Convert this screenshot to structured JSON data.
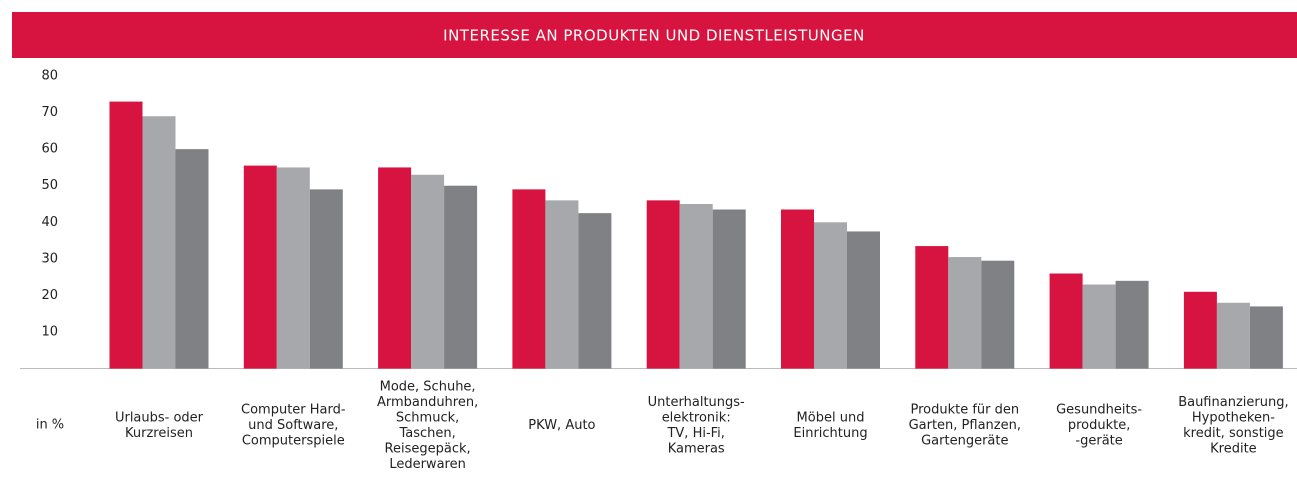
{
  "chart_data": {
    "type": "bar",
    "title": "INTERESSE AN PRODUKTEN UND DIENSTLEISTUNGEN",
    "y_label": "in %",
    "categories": [
      [
        "Urlaubs- oder",
        "Kurzreisen"
      ],
      [
        "Computer Hard-",
        "und Software,",
        "Computerspiele"
      ],
      [
        "Mode, Schuhe,",
        "Armbanduhren,",
        "Schmuck,",
        "Taschen,",
        "Reisegepäck,",
        "Lederwaren"
      ],
      [
        "PKW, Auto"
      ],
      [
        "Unterhaltungs-",
        "elektronik:",
        "TV, Hi-Fi,",
        "Kameras"
      ],
      [
        "Möbel und",
        "Einrichtung"
      ],
      [
        "Produkte für den",
        "Garten, Pflanzen,",
        "Gartengeräte"
      ],
      [
        "Gesundheits-",
        "produkte,",
        "-geräte"
      ],
      [
        "Baufinanzierung,",
        "Hypotheken-",
        "kredit, sonstige",
        "Kredite"
      ]
    ],
    "series": [
      {
        "color": "#d7143f",
        "values": [
          73,
          55.5,
          55,
          49,
          46,
          43.5,
          33.5,
          26,
          21
        ]
      },
      {
        "color": "#a7a8ab",
        "values": [
          69,
          55,
          53,
          46,
          45,
          40,
          30.5,
          23,
          18
        ]
      },
      {
        "color": "#808184",
        "values": [
          60,
          49,
          50,
          42.5,
          43.5,
          37.5,
          29.5,
          24,
          17
        ]
      }
    ],
    "ylim": [
      0,
      80
    ],
    "yticks": [
      10,
      20,
      30,
      40,
      50,
      60,
      70,
      80
    ],
    "grid": false
  }
}
